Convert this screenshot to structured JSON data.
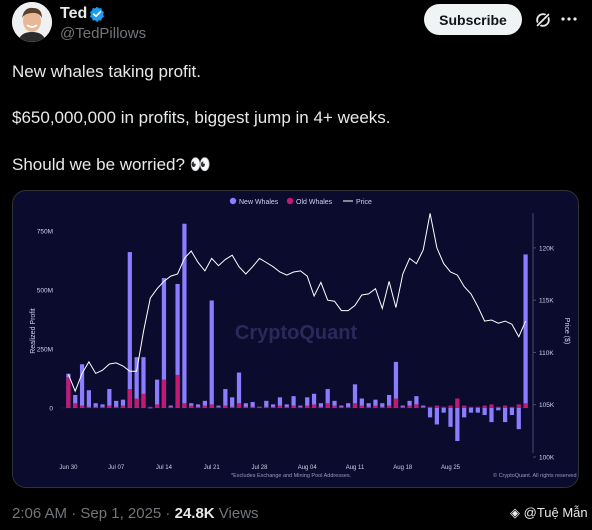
{
  "author": {
    "name": "Ted",
    "handle": "@TedPillows"
  },
  "actions": {
    "subscribe_label": "Subscribe"
  },
  "tweet": {
    "line1": "New whales taking profit.",
    "line2": "$650,000,000 in profits, biggest jump in 4+ weeks.",
    "line3": "Should we be worried? 👀"
  },
  "meta": {
    "time": "2:06 AM · Sep 1, 2025 · ",
    "views_count": "24.8K",
    "views_label": " Views"
  },
  "watermark": "@Tuệ Mẫn",
  "colors": {
    "background": "#000000",
    "chart_bg": "#0b0b2e",
    "new_whales": "#8a7dff",
    "old_whales": "#c01a74",
    "price": "#ffffff"
  },
  "chart_data": {
    "type": "bar",
    "title": "",
    "legend": [
      "New Whales",
      "Old Whales",
      "Price"
    ],
    "ylabel": "Realized Profit",
    "y2label": "Price ($)",
    "yticks": [
      "750M",
      "500M",
      "250M",
      "0"
    ],
    "y2ticks": [
      "120K",
      "115K",
      "110K",
      "105K",
      "100K"
    ],
    "xticks": [
      "Jun 30",
      "Jul 07",
      "Jul 14",
      "Jul 21",
      "Jul 28",
      "Aug 04",
      "Aug 11",
      "Aug 18",
      "Aug 25"
    ],
    "ylim": [
      -140,
      800
    ],
    "y2lim": [
      100000,
      122000
    ],
    "watermark": "CryptoQuant",
    "footnote": "*Excludes Exchange and Mining Pool Addresses.",
    "source": "© CryptoQuant. All rights reserved",
    "series": [
      {
        "name": "New Whales",
        "values": [
          145,
          55,
          185,
          75,
          20,
          15,
          80,
          30,
          35,
          660,
          215,
          215,
          2,
          120,
          550,
          10,
          525,
          780,
          20,
          15,
          30,
          455,
          10,
          80,
          45,
          150,
          20,
          25,
          5,
          30,
          15,
          45,
          15,
          50,
          10,
          45,
          60,
          20,
          80,
          30,
          10,
          20,
          100,
          40,
          20,
          35,
          20,
          55,
          195,
          10,
          30,
          50,
          10,
          -40,
          -70,
          -20,
          -80,
          -140,
          -40,
          -20,
          -20,
          -30,
          -60,
          -10,
          -60,
          -30,
          -90,
          650
        ]
      },
      {
        "name": "Old Whales",
        "values": [
          130,
          20,
          10,
          5,
          5,
          5,
          10,
          5,
          10,
          80,
          40,
          60,
          5,
          15,
          120,
          5,
          140,
          20,
          10,
          5,
          10,
          15,
          5,
          10,
          5,
          20,
          5,
          5,
          5,
          5,
          5,
          10,
          5,
          10,
          5,
          10,
          15,
          5,
          20,
          10,
          5,
          5,
          20,
          10,
          5,
          10,
          5,
          10,
          40,
          5,
          10,
          15,
          5,
          5,
          10,
          5,
          10,
          40,
          10,
          5,
          5,
          10,
          15,
          5,
          10,
          5,
          15,
          20
        ]
      },
      {
        "name": "Price",
        "values": [
          107900,
          106300,
          108000,
          109100,
          108000,
          108300,
          108900,
          109000,
          108700,
          108200,
          108200,
          112000,
          115200,
          116100,
          116800,
          117300,
          117500,
          119000,
          119700,
          118600,
          117800,
          119000,
          118300,
          118900,
          119300,
          118200,
          117500,
          118200,
          119000,
          118600,
          118200,
          117700,
          117400,
          117700,
          117800,
          117300,
          115400,
          116700,
          115000,
          114900,
          114000,
          114000,
          114500,
          115500,
          115600,
          116100,
          114200,
          116800,
          114300,
          117500,
          119000,
          118500,
          119800,
          123300,
          120000,
          118500,
          117700,
          117400,
          116300,
          115600,
          114400,
          113000,
          113100,
          112800,
          113000,
          112700,
          111500,
          113000
        ]
      }
    ]
  }
}
